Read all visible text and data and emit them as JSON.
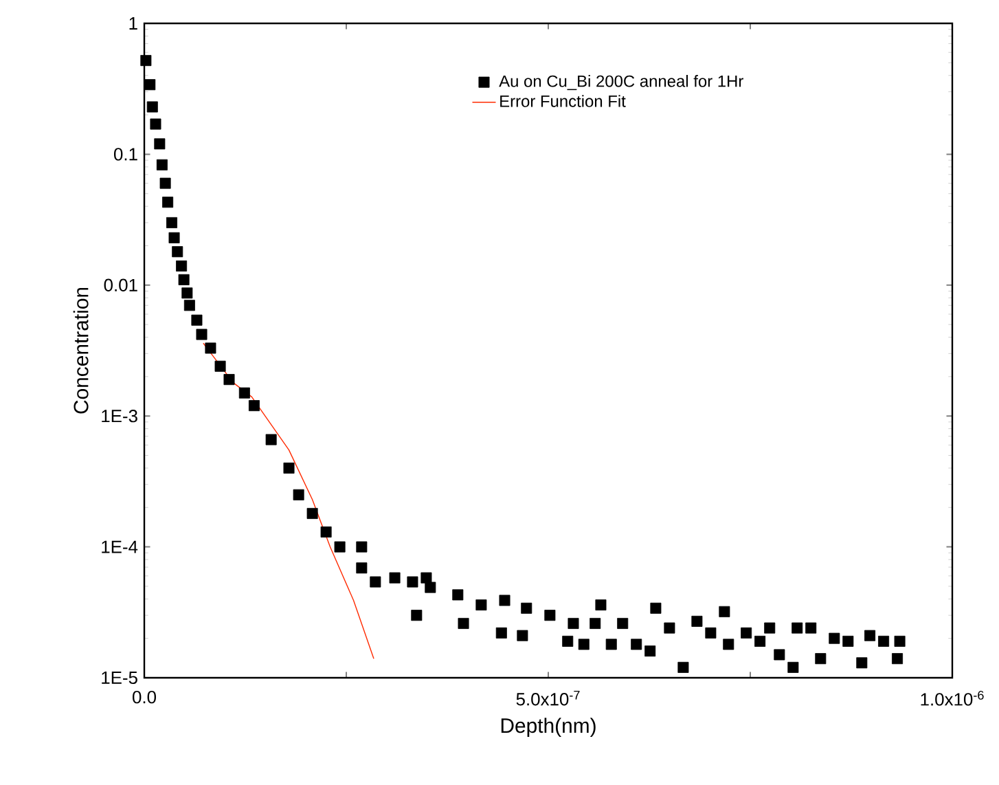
{
  "chart_data": {
    "type": "scatter",
    "xlabel": "Depth(nm)",
    "ylabel": "Concentration",
    "log": "y",
    "legend": "top right",
    "marker": "square",
    "xlim": [
      0,
      1e-06
    ],
    "ylim": [
      1e-05,
      1
    ],
    "xticks": [
      {
        "value": 0,
        "label": "0.0"
      },
      {
        "value": 2.5e-07,
        "label": null
      },
      {
        "value": 5e-07,
        "label": "5.0x10$^{-7}$"
      },
      {
        "value": 7.5e-07,
        "label": null
      },
      {
        "value": 1e-06,
        "label": "1.0x10$^{-6}$"
      }
    ],
    "yticks": [
      {
        "value": 1e-05,
        "label": "1E-5"
      },
      {
        "value": 0.0001,
        "label": "1E-4"
      },
      {
        "value": 0.001,
        "label": "1E-3"
      },
      {
        "value": 0.01,
        "label": "0.01"
      },
      {
        "value": 0.1,
        "label": "0.1"
      },
      {
        "value": 1,
        "label": "1"
      }
    ],
    "series": [
      {
        "name": "Au on Cu_Bi 200C anneal for 1Hr",
        "color": "#000000",
        "x": [
          2e-09,
          7e-09,
          1e-08,
          1.4e-08,
          1.9e-08,
          2.2e-08,
          2.6e-08,
          2.9e-08,
          3.4e-08,
          3.7e-08,
          4.1e-08,
          4.6e-08,
          4.9e-08,
          5.3e-08,
          5.6e-08,
          6.5e-08,
          7.1e-08,
          8.2e-08,
          9.4e-08,
          1.05e-07,
          1.24e-07,
          1.36e-07,
          1.57e-07,
          1.79e-07,
          1.91e-07,
          2.08e-07,
          2.25e-07,
          2.42e-07,
          2.69e-07,
          2.69e-07,
          2.86e-07,
          3.1e-07,
          3.32e-07,
          3.49e-07,
          3.37e-07,
          3.54e-07,
          3.88e-07,
          3.95e-07,
          4.17e-07,
          4.42e-07,
          4.46e-07,
          4.68e-07,
          4.73e-07,
          5.02e-07,
          5.24e-07,
          5.31e-07,
          5.44e-07,
          5.58e-07,
          5.65e-07,
          5.78e-07,
          5.92e-07,
          6.09e-07,
          6.26e-07,
          6.33e-07,
          6.5e-07,
          6.67e-07,
          6.84e-07,
          7.01e-07,
          7.18e-07,
          7.23e-07,
          7.45e-07,
          7.62e-07,
          7.74e-07,
          7.86e-07,
          8.03e-07,
          8.08e-07,
          8.25e-07,
          8.37e-07,
          8.54e-07,
          8.71e-07,
          8.88e-07,
          8.98e-07,
          9.15e-07,
          9.32e-07,
          9.35e-07
        ],
        "values": [
          0.52,
          0.34,
          0.23,
          0.17,
          0.12,
          0.083,
          0.06,
          0.043,
          0.03,
          0.023,
          0.018,
          0.014,
          0.011,
          0.0087,
          0.007,
          0.0054,
          0.0042,
          0.0033,
          0.0024,
          0.0019,
          0.0015,
          0.0012,
          0.00066,
          0.0004,
          0.00025,
          0.00018,
          0.00013,
          0.0001,
          6.9e-05,
          0.0001,
          5.4e-05,
          5.8e-05,
          5.4e-05,
          5.8e-05,
          3e-05,
          4.9e-05,
          4.3e-05,
          2.6e-05,
          3.6e-05,
          2.2e-05,
          3.9e-05,
          2.1e-05,
          3.4e-05,
          3e-05,
          1.9e-05,
          2.6e-05,
          1.8e-05,
          2.6e-05,
          3.6e-05,
          1.8e-05,
          2.6e-05,
          1.8e-05,
          1.6e-05,
          3.4e-05,
          2.4e-05,
          1.2e-05,
          2.7e-05,
          2.2e-05,
          3.2e-05,
          1.8e-05,
          2.2e-05,
          1.9e-05,
          2.4e-05,
          1.5e-05,
          1.2e-05,
          2.4e-05,
          2.4e-05,
          1.4e-05,
          2e-05,
          1.9e-05,
          1.3e-05,
          2.1e-05,
          1.9e-05,
          1.4e-05,
          1.9e-05
        ]
      },
      {
        "name": "Error Function Fit",
        "type": "line",
        "marker": "none",
        "line_style": "solid",
        "color": "#ff2a00",
        "x": [
          7.3e-08,
          1.1e-07,
          1.33e-07,
          1.79e-07,
          2.08e-07,
          2.3e-07,
          2.59e-07,
          2.84e-07
        ],
        "values": [
          0.0036,
          0.0018,
          0.0014,
          0.00055,
          0.00023,
          0.0001,
          3.9e-05,
          1.4e-05
        ]
      }
    ]
  }
}
